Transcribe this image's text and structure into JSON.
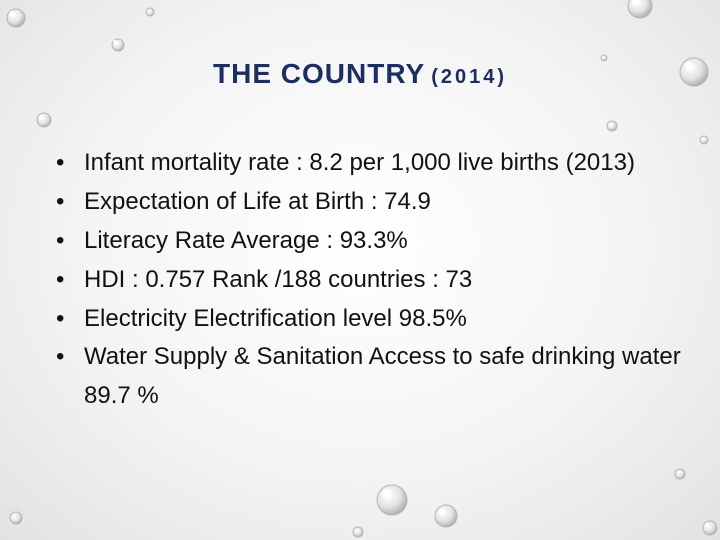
{
  "slide": {
    "title": "THE COUNTRY",
    "title_year": "(2014)",
    "bullet_glyph": "•",
    "bullets": [
      "Infant mortality rate : 8.2 per 1,000 live births (2013)",
      "Expectation of Life at Birth : 74.9",
      "Literacy Rate Average : 93.3%",
      "HDI : 0.757 Rank /188 countries : 73",
      "Electricity Electrification level 98.5%",
      "Water Supply & Sanitation Access to safe drinking water 89.7 %"
    ]
  },
  "theme": {
    "title_color": "#1d2e60",
    "text_color": "#111111",
    "background": "#f4f4f4"
  }
}
